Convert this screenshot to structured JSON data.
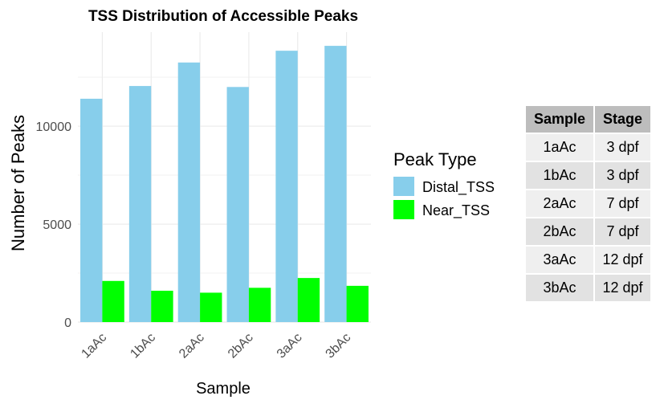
{
  "chart_data": {
    "type": "bar",
    "title": "TSS Distribution of Accessible Peaks",
    "xlabel": "Sample",
    "ylabel": "Number of Peaks",
    "categories": [
      "1aAc",
      "1bAc",
      "2aAc",
      "2bAc",
      "3aAc",
      "3bAc"
    ],
    "series": [
      {
        "name": "Distal_TSS",
        "color": "#87CEEB",
        "values": [
          11400,
          12050,
          13250,
          12000,
          13850,
          14100
        ]
      },
      {
        "name": "Near_TSS",
        "color": "#00FF00",
        "values": [
          2100,
          1600,
          1500,
          1750,
          2250,
          1850
        ]
      }
    ],
    "yticks": [
      0,
      5000,
      10000
    ],
    "ytick_labels": [
      "0",
      "5000",
      "10000"
    ],
    "ylim": [
      0,
      14800
    ],
    "grid": true,
    "legend": {
      "title": "Peak Type",
      "placement": "right"
    }
  },
  "table": {
    "headers": [
      "Sample",
      "Stage"
    ],
    "rows": [
      [
        "1aAc",
        "3 dpf"
      ],
      [
        "1bAc",
        "3 dpf"
      ],
      [
        "2aAc",
        "7 dpf"
      ],
      [
        "2bAc",
        "7 dpf"
      ],
      [
        "3aAc",
        "12 dpf"
      ],
      [
        "3bAc",
        "12 dpf"
      ]
    ]
  }
}
